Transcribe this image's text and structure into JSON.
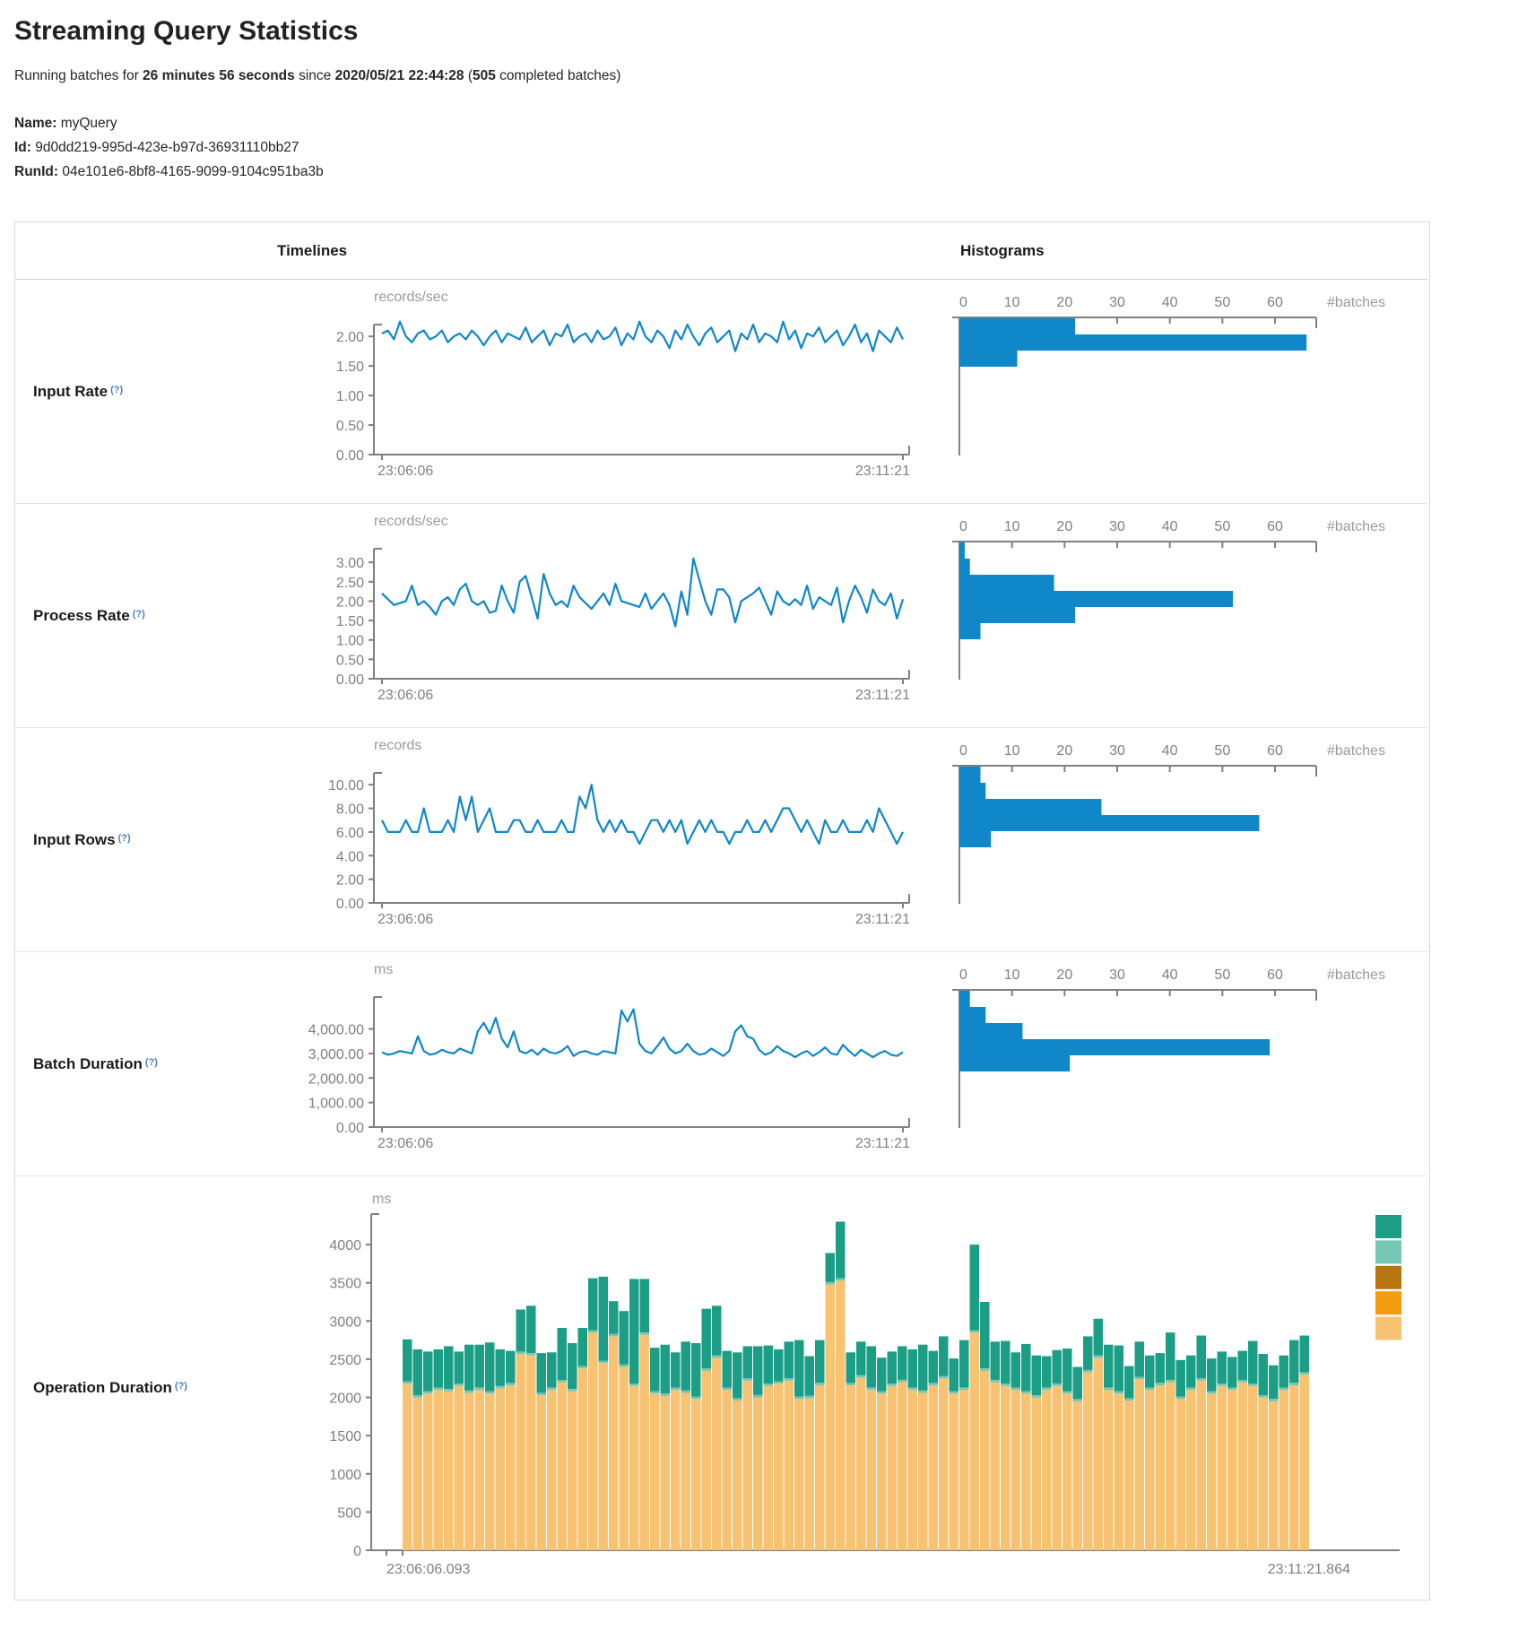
{
  "header": {
    "title": "Streaming Query Statistics",
    "subtitle_prefix": "Running batches for ",
    "duration": "26 minutes 56 seconds",
    "since_text": " since ",
    "start_time": "2020/05/21 22:44:28",
    "paren_open": " (",
    "completed_batches": "505",
    "subtitle_suffix": " completed batches)"
  },
  "meta": {
    "name_label": "Name:",
    "name_value": " myQuery",
    "id_label": "Id:",
    "id_value": " 9d0dd219-995d-423e-b97d-36931110bb27",
    "runid_label": "RunId:",
    "runid_value": " 04e101e6-8bf8-4165-9099-9104c951ba3b"
  },
  "table": {
    "col_timelines": "Timelines",
    "col_histograms": "Histograms",
    "rows": [
      {
        "label": "Input Rate",
        "hint": "(?)"
      },
      {
        "label": "Process Rate",
        "hint": "(?)"
      },
      {
        "label": "Input Rows",
        "hint": "(?)"
      },
      {
        "label": "Batch Duration",
        "hint": "(?)"
      },
      {
        "label": "Operation Duration",
        "hint": "(?)"
      }
    ]
  },
  "colors": {
    "blue": "#0f87c8",
    "teal": "#1b9e85",
    "light_teal": "#76c7b5",
    "dark_orange": "#b8770e",
    "orange": "#f39c11",
    "tan": "#f7c372",
    "axis_gray": "#808080"
  },
  "chart_data": [
    {
      "id": "input-rate-timeline",
      "type": "line",
      "ylabel": "records/sec",
      "x_start": "23:06:06",
      "x_end": "23:11:21",
      "ylim": [
        0,
        2.2
      ],
      "ytick_values": [
        2,
        1.5,
        1,
        0.5,
        0
      ],
      "ytick_labels": [
        "2.00",
        "1.50",
        "1.00",
        "0.50",
        "0.00"
      ],
      "line_color": "#0f87c8",
      "values": [
        2.05,
        2.1,
        1.95,
        2.25,
        2.0,
        1.9,
        2.05,
        2.1,
        1.95,
        2.0,
        2.1,
        1.9,
        2.0,
        2.05,
        1.95,
        2.1,
        2.0,
        1.85,
        2.0,
        2.1,
        1.9,
        2.05,
        2.0,
        1.95,
        2.15,
        1.9,
        2.0,
        2.1,
        1.85,
        2.05,
        2.0,
        2.2,
        1.9,
        2.0,
        2.05,
        1.9,
        2.1,
        1.95,
        2.0,
        2.15,
        1.85,
        2.05,
        1.95,
        2.25,
        2.0,
        1.9,
        2.1,
        2.0,
        1.8,
        2.1,
        1.95,
        2.2,
        2.0,
        1.85,
        2.05,
        2.15,
        1.9,
        2.0,
        2.1,
        1.75,
        2.05,
        1.95,
        2.2,
        1.9,
        2.05,
        2.0,
        1.9,
        2.25,
        1.95,
        2.1,
        1.8,
        2.05,
        2.0,
        2.15,
        1.9,
        2.0,
        2.1,
        1.85,
        2.0,
        2.2,
        1.9,
        2.05,
        1.75,
        2.1,
        2.0,
        1.9,
        2.15,
        1.95
      ]
    },
    {
      "id": "input-rate-histogram",
      "type": "bar",
      "orientation": "horizontal",
      "xlabel": "#batches",
      "xticks": [
        0,
        10,
        20,
        30,
        40,
        50,
        60
      ],
      "xlim": [
        0,
        68
      ],
      "bar_color": "#0f87c8",
      "values": [
        22,
        66,
        11
      ]
    },
    {
      "id": "process-rate-timeline",
      "type": "line",
      "ylabel": "records/sec",
      "x_start": "23:06:06",
      "x_end": "23:11:21",
      "ylim": [
        0,
        3.35
      ],
      "ytick_values": [
        3,
        2.5,
        2,
        1.5,
        1,
        0.5,
        0
      ],
      "ytick_labels": [
        "3.00",
        "2.50",
        "2.00",
        "1.50",
        "1.00",
        "0.50",
        "0.00"
      ],
      "line_color": "#0f87c8",
      "values": [
        2.2,
        2.05,
        1.9,
        1.95,
        2.0,
        2.4,
        1.9,
        2.0,
        1.85,
        1.65,
        2.0,
        2.1,
        1.9,
        2.3,
        2.45,
        2.0,
        1.9,
        2.0,
        1.7,
        1.75,
        2.4,
        2.0,
        1.7,
        2.5,
        2.65,
        2.1,
        1.55,
        2.7,
        2.2,
        1.9,
        2.0,
        1.85,
        2.4,
        2.1,
        1.95,
        1.8,
        2.0,
        2.2,
        1.9,
        2.45,
        2.0,
        1.95,
        1.9,
        1.85,
        2.2,
        1.8,
        2.0,
        2.2,
        1.9,
        1.35,
        2.25,
        1.65,
        3.1,
        2.55,
        2.0,
        1.65,
        2.3,
        2.3,
        2.1,
        1.45,
        2.0,
        2.1,
        2.2,
        2.35,
        2.0,
        1.65,
        2.25,
        2.0,
        1.9,
        2.05,
        1.9,
        2.4,
        1.8,
        2.1,
        2.0,
        1.9,
        2.35,
        1.45,
        2.0,
        2.4,
        2.1,
        1.7,
        2.3,
        2.0,
        1.9,
        2.2,
        1.55,
        2.05
      ]
    },
    {
      "id": "process-rate-histogram",
      "type": "bar",
      "orientation": "horizontal",
      "xlabel": "#batches",
      "xticks": [
        0,
        10,
        20,
        30,
        40,
        50,
        60
      ],
      "xlim": [
        0,
        68
      ],
      "bar_color": "#0f87c8",
      "values": [
        1,
        2,
        18,
        52,
        22,
        4
      ]
    },
    {
      "id": "input-rows-timeline",
      "type": "line",
      "ylabel": "records",
      "x_start": "23:06:06",
      "x_end": "23:11:21",
      "ylim": [
        0,
        11
      ],
      "ytick_values": [
        10,
        8,
        6,
        4,
        2,
        0
      ],
      "ytick_labels": [
        "10.00",
        "8.00",
        "6.00",
        "4.00",
        "2.00",
        "0.00"
      ],
      "line_color": "#0f87c8",
      "values": [
        7,
        6,
        6,
        6,
        7,
        6,
        6,
        8,
        6,
        6,
        6,
        7,
        6,
        9,
        7,
        9,
        6,
        7,
        8,
        6,
        6,
        6,
        7,
        7,
        6,
        6,
        7,
        6,
        6,
        6,
        7,
        6,
        6,
        9,
        8,
        10,
        7,
        6,
        7,
        6,
        7,
        6,
        6,
        5,
        6,
        7,
        7,
        6,
        7,
        6,
        7,
        5,
        6,
        7,
        6,
        7,
        6,
        6,
        5,
        6,
        6,
        7,
        6,
        6,
        7,
        6,
        7,
        8,
        8,
        7,
        6,
        7,
        6,
        5,
        7,
        6,
        6,
        7,
        6,
        6,
        6,
        7,
        6,
        8,
        7,
        6,
        5,
        6
      ]
    },
    {
      "id": "input-rows-histogram",
      "type": "bar",
      "orientation": "horizontal",
      "xlabel": "#batches",
      "xticks": [
        0,
        10,
        20,
        30,
        40,
        50,
        60
      ],
      "xlim": [
        0,
        68
      ],
      "bar_color": "#0f87c8",
      "values": [
        4,
        5,
        27,
        57,
        6
      ]
    },
    {
      "id": "batch-duration-timeline",
      "type": "line",
      "ylabel": "ms",
      "x_start": "23:06:06",
      "x_end": "23:11:21",
      "ylim": [
        0,
        5300
      ],
      "ytick_values": [
        4000,
        3000,
        2000,
        1000,
        0
      ],
      "ytick_labels": [
        "4,000.00",
        "3,000.00",
        "2,000.00",
        "1,000.00",
        "0.00"
      ],
      "line_color": "#0f87c8",
      "values": [
        3050,
        2950,
        3000,
        3100,
        3050,
        3000,
        3700,
        3100,
        2950,
        3000,
        3150,
        3050,
        3000,
        3200,
        3100,
        3000,
        3900,
        4250,
        3800,
        4450,
        3600,
        3250,
        3900,
        3100,
        3000,
        3150,
        2950,
        3200,
        3050,
        3000,
        3100,
        3300,
        2900,
        3050,
        3100,
        3000,
        2950,
        3100,
        3050,
        3000,
        4750,
        4300,
        4800,
        3400,
        3100,
        3000,
        3300,
        3650,
        3200,
        3000,
        3100,
        3400,
        3100,
        2950,
        3000,
        3200,
        3050,
        2900,
        3100,
        3900,
        4150,
        3700,
        3600,
        3150,
        2950,
        3050,
        3300,
        3100,
        3000,
        2850,
        3000,
        3100,
        2900,
        3050,
        3250,
        3000,
        2950,
        3350,
        3100,
        2900,
        3150,
        3000,
        2850,
        3000,
        3100,
        2950,
        2900,
        3050
      ]
    },
    {
      "id": "batch-duration-histogram",
      "type": "bar",
      "orientation": "horizontal",
      "xlabel": "#batches",
      "xticks": [
        0,
        10,
        20,
        30,
        40,
        50,
        60
      ],
      "xlim": [
        0,
        68
      ],
      "bar_color": "#0f87c8",
      "values": [
        2,
        5,
        12,
        59,
        21
      ]
    },
    {
      "id": "operation-duration-stacked",
      "type": "bar",
      "stacked": true,
      "ylabel": "ms",
      "x_start": "23:06:06.093",
      "x_end": "23:11:21.864",
      "ylim": [
        0,
        4400
      ],
      "ytick_values": [
        0,
        500,
        1000,
        1500,
        2000,
        2500,
        3000,
        3500,
        4000
      ],
      "ytick_labels": [
        "0",
        "500",
        "1000",
        "1500",
        "2000",
        "2500",
        "3000",
        "3500",
        "4000"
      ],
      "legend_colors": [
        "#1b9e85",
        "#76c7b5",
        "#b8770e",
        "#f39c11",
        "#f7c372"
      ],
      "series": [
        {
          "name": "bottom-tan",
          "color": "#f7c372",
          "values": [
            2180,
            2000,
            2050,
            2100,
            2080,
            2150,
            2060,
            2100,
            2050,
            2120,
            2160,
            2570,
            2550,
            2030,
            2100,
            2200,
            2080,
            2380,
            2850,
            2450,
            2800,
            2400,
            2150,
            2820,
            2050,
            2020,
            2100,
            2060,
            1980,
            2350,
            2520,
            2100,
            1960,
            2220,
            2000,
            2150,
            2180,
            2220,
            1980,
            1990,
            2160,
            3480,
            3530,
            2160,
            2260,
            2100,
            2050,
            2150,
            2200,
            2100,
            2060,
            2160,
            2250,
            2050,
            2100,
            2850,
            2350,
            2200,
            2150,
            2100,
            2050,
            2000,
            2100,
            2150,
            2050,
            1950,
            2330,
            2520,
            2100,
            2050,
            1960,
            2240,
            2100,
            2160,
            2200,
            1980,
            2100,
            2220,
            2050,
            2150,
            2100,
            2200,
            2150,
            2000,
            1950,
            2100,
            2160,
            2300
          ]
        },
        {
          "name": "middle-light-teal",
          "color": "#76c7b5",
          "values": [
            30,
            30,
            30,
            30,
            30,
            30,
            30,
            30,
            30,
            30,
            30,
            30,
            30,
            30,
            30,
            30,
            30,
            30,
            30,
            30,
            30,
            30,
            30,
            30,
            30,
            30,
            30,
            30,
            30,
            30,
            30,
            30,
            30,
            30,
            30,
            30,
            30,
            30,
            30,
            30,
            30,
            30,
            30,
            30,
            30,
            30,
            30,
            30,
            30,
            30,
            30,
            30,
            30,
            30,
            30,
            30,
            30,
            30,
            30,
            30,
            30,
            30,
            30,
            30,
            30,
            30,
            30,
            30,
            30,
            30,
            30,
            30,
            30,
            30,
            30,
            30,
            30,
            30,
            30,
            30,
            30,
            30,
            30,
            30,
            30,
            30,
            30,
            30
          ]
        },
        {
          "name": "top-teal",
          "color": "#1b9e85",
          "values": [
            550,
            600,
            520,
            500,
            560,
            420,
            600,
            560,
            640,
            480,
            420,
            550,
            620,
            520,
            460,
            680,
            600,
            500,
            680,
            1100,
            430,
            700,
            1370,
            700,
            570,
            640,
            460,
            640,
            700,
            780,
            650,
            480,
            600,
            420,
            640,
            500,
            420,
            480,
            740,
            520,
            560,
            380,
            740,
            400,
            440,
            540,
            440,
            420,
            440,
            500,
            600,
            420,
            520,
            430,
            620,
            1120,
            870,
            500,
            560,
            460,
            620,
            520,
            410,
            440,
            560,
            420,
            440,
            480,
            560,
            600,
            420,
            460,
            420,
            390,
            620,
            480,
            420,
            560,
            430,
            420,
            400,
            380,
            560,
            540,
            440,
            420,
            560,
            480
          ]
        }
      ]
    }
  ]
}
